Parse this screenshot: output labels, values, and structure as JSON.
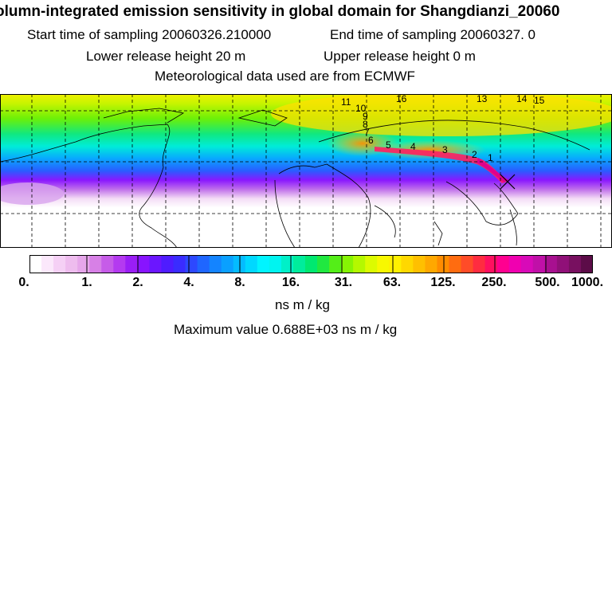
{
  "header": {
    "title": "olumn-integrated emission sensitivity in global domain for Shangdianzi_20060",
    "start_sampling": "Start time of sampling 20060326.210000",
    "end_sampling": "End time of sampling 20060327.     0",
    "lower_height": "Lower release height   20 m",
    "upper_height": "Upper release height    0 m",
    "met_data": "Meteorological data used are from ECMWF"
  },
  "map": {
    "trajectory_labels": [
      "11",
      "10",
      "16",
      "13",
      "14",
      "15",
      "9",
      "8",
      "7",
      "6",
      "5",
      "4",
      "3",
      "2",
      "1"
    ],
    "receptor_marker": "cross"
  },
  "colorbar": {
    "ticks": [
      "0.",
      "1.",
      "2.",
      "4.",
      "8.",
      "16.",
      "31.",
      "63.",
      "125.",
      "250.",
      "500.",
      "1000."
    ],
    "colors": [
      "#ffffff",
      "#fbe8fb",
      "#f5d0f5",
      "#eebcee",
      "#e6a6ea",
      "#d780e6",
      "#c65ce8",
      "#b43af0",
      "#9a1ef6",
      "#8814ff",
      "#6b16ff",
      "#4f1cff",
      "#3a2cff",
      "#2d48ff",
      "#1f66ff",
      "#1484ff",
      "#0aa0ff",
      "#04bcff",
      "#00d8ff",
      "#00f4ff",
      "#00f4f0",
      "#00f0c8",
      "#00ec9c",
      "#00e870",
      "#20e840",
      "#54ee18",
      "#86f404",
      "#b4f800",
      "#dcfb00",
      "#f8f800",
      "#fff000",
      "#ffd800",
      "#ffc000",
      "#ffa800",
      "#ff8c00",
      "#ff6c10",
      "#ff4c28",
      "#ff2c40",
      "#ff1060",
      "#ff0090",
      "#f000b0",
      "#d80ab8",
      "#c010a8",
      "#a81090",
      "#901078",
      "#781060",
      "#5c0c48"
    ],
    "unit": "ns m / kg"
  },
  "stats": {
    "max_value": "Maximum value  0.688E+03 ns m / kg"
  }
}
